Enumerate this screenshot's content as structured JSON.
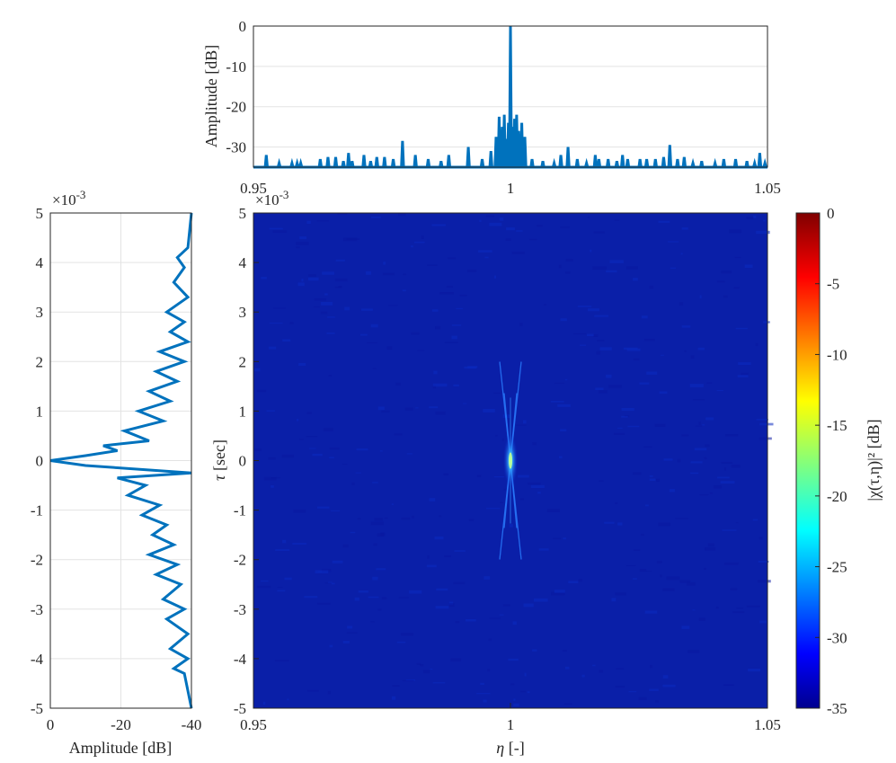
{
  "colors": {
    "series": "#0072BD",
    "axis": "#262626",
    "grid": "#e3e3e3",
    "background": "#ffffff"
  },
  "chart_data": [
    {
      "id": "top",
      "type": "line",
      "xlabel": "",
      "ylabel": "Amplitude [dB]",
      "xlim": [
        0.95,
        1.05
      ],
      "ylim": [
        -35,
        0
      ],
      "xticks": [
        "0.95",
        "1",
        "1.05"
      ],
      "yticks": [
        "0",
        "-10",
        "-20",
        "-30"
      ],
      "grid": true,
      "series": [
        {
          "x": [
            0.9525,
            0.955,
            0.9575,
            0.9585,
            0.9592,
            0.963,
            0.9645,
            0.966,
            0.9675,
            0.9685,
            0.9692,
            0.9715,
            0.9728,
            0.974,
            0.9755,
            0.9772,
            0.979,
            0.9815,
            0.984,
            0.9865,
            0.988,
            0.9918,
            0.9945,
            0.9962,
            0.9972,
            0.9978,
            0.9984,
            0.9988,
            0.9992,
            0.9996,
            1.0,
            1.0004,
            1.0008,
            1.0012,
            1.0016,
            1.0022,
            1.0028,
            1.0042,
            1.0063,
            1.0085,
            1.0098,
            1.0112,
            1.013,
            1.0148,
            1.0165,
            1.0172,
            1.019,
            1.0207,
            1.0218,
            1.0228,
            1.0252,
            1.0265,
            1.0282,
            1.0298,
            1.031,
            1.0325,
            1.0338,
            1.0355,
            1.0372,
            1.0398,
            1.0415,
            1.0438,
            1.046,
            1.0475,
            1.0485,
            1.0495
          ],
          "y": [
            -32,
            -34,
            -34,
            -34,
            -34,
            -33,
            -32.5,
            -32.5,
            -33.5,
            -31.5,
            -33.5,
            -32,
            -33.5,
            -32.5,
            -32.5,
            -33,
            -28.5,
            -32,
            -33,
            -33.5,
            -32,
            -30,
            -33,
            -31,
            -27.5,
            -22.5,
            -25,
            -22,
            -28,
            -24,
            0,
            -25,
            -23,
            -22,
            -26,
            -24,
            -27.5,
            -33,
            -33.5,
            -34,
            -32,
            -30,
            -33,
            -34,
            -32,
            -33,
            -33,
            -33.5,
            -32,
            -33,
            -33,
            -33,
            -33,
            -32.5,
            -29.5,
            -33,
            -32.5,
            -34,
            -33.5,
            -34,
            -33,
            -33,
            -33.5,
            -34,
            -31.5,
            -34
          ]
        }
      ]
    },
    {
      "id": "left",
      "type": "line",
      "xlabel": "Amplitude [dB]",
      "ylabel": "",
      "xlim": [
        0,
        -40
      ],
      "ylim": [
        -5,
        5
      ],
      "xticks": [
        "0",
        "-20",
        "-40"
      ],
      "yticks": [
        "5",
        "4",
        "3",
        "2",
        "1",
        "0",
        "-1",
        "-2",
        "-3",
        "-4",
        "-5"
      ],
      "ymultiplier": "×10",
      "ymultiplier_exp": "-3",
      "grid": true,
      "series": [
        {
          "tau": [
            -5.0,
            -4.3,
            -4.2,
            -4.0,
            -3.8,
            -3.5,
            -3.2,
            -3.0,
            -2.8,
            -2.5,
            -2.3,
            -2.1,
            -1.9,
            -1.7,
            -1.5,
            -1.3,
            -1.1,
            -0.9,
            -0.7,
            -0.5,
            -0.35,
            -0.25,
            -0.1,
            0.0,
            0.1,
            0.2,
            0.3,
            0.4,
            0.6,
            0.8,
            1.0,
            1.2,
            1.4,
            1.6,
            1.8,
            2.0,
            2.2,
            2.4,
            2.6,
            2.8,
            3.0,
            3.3,
            3.6,
            3.9,
            4.1,
            4.3,
            5.0
          ],
          "amp": [
            -40,
            -38,
            -35,
            -39,
            -34,
            -39,
            -33,
            -38,
            -32,
            -37,
            -30,
            -36,
            -28,
            -35,
            -29,
            -33,
            -26,
            -31,
            -22,
            -27,
            -19,
            -40,
            -10,
            0,
            -10,
            -19,
            -15,
            -28,
            -21,
            -32,
            -25,
            -34,
            -28,
            -36,
            -30,
            -38,
            -31,
            -39,
            -34,
            -38,
            -33,
            -39,
            -35,
            -38,
            -36,
            -39,
            -40
          ]
        }
      ]
    },
    {
      "id": "main",
      "type": "heatmap",
      "xlabel_sym": "η",
      "xlabel_unit": "[-]",
      "ylabel_sym": "τ",
      "ylabel_unit": "[sec]",
      "xlim": [
        0.95,
        1.05
      ],
      "ylim": [
        -5,
        5
      ],
      "xticks": [
        "0.95",
        "1",
        "1.05"
      ],
      "yticks": [
        "5",
        "4",
        "3",
        "2",
        "1",
        "0",
        "-1",
        "-2",
        "-3",
        "-4",
        "-5"
      ],
      "ymultiplier": "×10",
      "ymultiplier_exp": "-3",
      "clim": [
        -35,
        0
      ],
      "colorbar_ticks": [
        "0",
        "-5",
        "-10",
        "-15",
        "-20",
        "-25",
        "-30",
        "-35"
      ],
      "colorbar_label": "|χ(τ,η)|² [dB]",
      "colormap": "jet",
      "peak": {
        "eta": 1.0,
        "tau": 0.0,
        "value": 0
      }
    }
  ]
}
